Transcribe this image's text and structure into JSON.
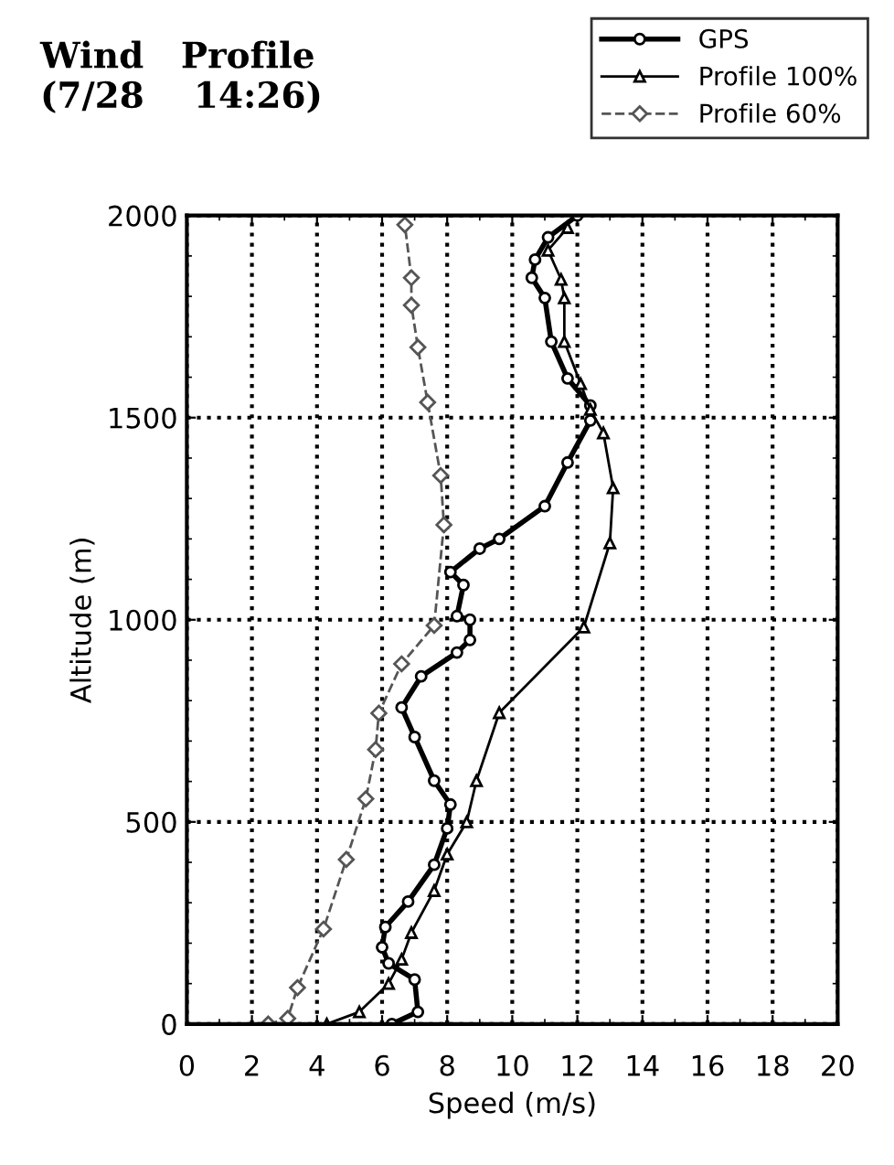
{
  "chart_data": {
    "type": "line",
    "title": "Wind   Profile\n(7/28    14:26)",
    "xlabel": "Speed (m/s)",
    "ylabel": "Altitude (m)",
    "xlim": [
      0,
      20
    ],
    "xticks": [
      0,
      2,
      4,
      6,
      8,
      10,
      12,
      14,
      16,
      18,
      20
    ],
    "ylim": [
      0,
      2000
    ],
    "yticks": [
      0,
      500,
      1000,
      1500,
      2000
    ],
    "grid": true,
    "legend": "top right",
    "series": [
      {
        "name": "GPS",
        "color": "#000000",
        "marker": "circle",
        "line_style": "solid",
        "x": [
          6.3,
          7.1,
          7.0,
          6.2,
          6.0,
          6.1,
          6.8,
          7.6,
          8.0,
          8.1,
          7.6,
          7.0,
          6.6,
          7.2,
          8.3,
          8.7,
          8.7,
          8.3,
          8.5,
          8.1,
          9.0,
          9.6,
          11.0,
          11.7,
          12.4,
          12.4,
          11.7,
          11.2,
          11.0,
          10.6,
          10.7,
          11.1,
          12.0
        ],
        "values": [
          0,
          30,
          110,
          150,
          190,
          240,
          303,
          394,
          484,
          543,
          602,
          710,
          783,
          860,
          919,
          950,
          1000,
          1009,
          1086,
          1118,
          1176,
          1200,
          1281,
          1389,
          1493,
          1530,
          1597,
          1688,
          1796,
          1846,
          1891,
          1946,
          2000
        ]
      },
      {
        "name": "Profile 100%",
        "color": "#000000",
        "marker": "triangle",
        "line_style": "solid",
        "x": [
          4.3,
          5.3,
          6.2,
          6.6,
          6.9,
          7.6,
          8.0,
          8.6,
          8.9,
          9.6,
          12.2,
          13.0,
          13.1,
          12.8,
          12.4,
          12.1,
          11.6,
          11.6,
          11.5,
          11.1,
          11.7
        ],
        "values": [
          0,
          30,
          100,
          160,
          226,
          330,
          420,
          500,
          602,
          770,
          982,
          1190,
          1326,
          1462,
          1520,
          1584,
          1688,
          1796,
          1842,
          1914,
          1970
        ]
      },
      {
        "name": "Profile 60%",
        "color": "#555555",
        "marker": "diamond",
        "line_style": "dashed",
        "x": [
          2.5,
          3.1,
          3.4,
          4.2,
          4.9,
          5.5,
          5.8,
          5.9,
          6.6,
          7.6,
          7.9,
          7.8,
          7.4,
          7.1,
          6.9,
          6.9,
          6.7
        ],
        "values": [
          0,
          14,
          90,
          235,
          407,
          557,
          679,
          769,
          891,
          986,
          1235,
          1357,
          1538,
          1674,
          1778,
          1846,
          1977
        ]
      }
    ]
  }
}
